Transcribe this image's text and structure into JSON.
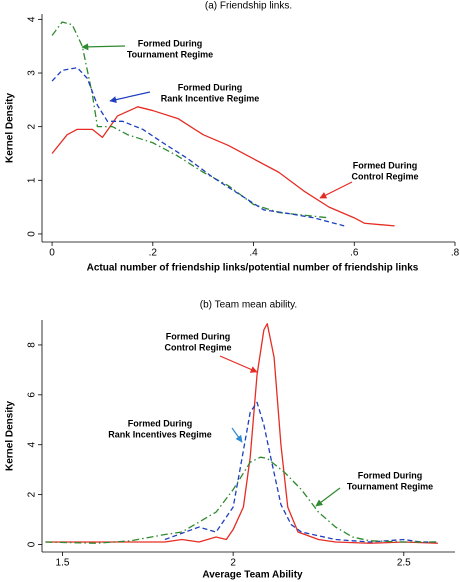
{
  "chart_data": [
    {
      "type": "line",
      "title": "(a) Friendship links.",
      "x_label": "Actual number of friendship links/potential number of friendship links",
      "y_label": "Kernel Density",
      "xlim": [
        -0.02,
        0.8
      ],
      "ylim": [
        -0.15,
        4.1
      ],
      "xticks": [
        0,
        {
          "value": 0.2,
          "label": ".2"
        },
        {
          "value": 0.4,
          "label": ".4"
        },
        {
          "value": 0.6,
          "label": ".6"
        },
        {
          "value": 0.8,
          "label": ".8"
        }
      ],
      "yticks": [
        0,
        1,
        2,
        3,
        4
      ],
      "series": [
        {
          "color": "#e52d24",
          "line_style": "solid",
          "x": [
            0,
            0.03,
            0.05,
            0.08,
            0.1,
            0.13,
            0.17,
            0.2,
            0.25,
            0.3,
            0.35,
            0.4,
            0.45,
            0.5,
            0.55,
            0.6,
            0.62,
            0.68
          ],
          "values": [
            1.5,
            1.85,
            1.95,
            1.95,
            1.8,
            2.2,
            2.37,
            2.3,
            2.15,
            1.85,
            1.65,
            1.4,
            1.15,
            0.8,
            0.5,
            0.3,
            0.2,
            0.15
          ]
        },
        {
          "color": "#2f8a2f",
          "line_style": "dashdot",
          "x": [
            0,
            0.02,
            0.04,
            0.06,
            0.08,
            0.09,
            0.12,
            0.15,
            0.2,
            0.25,
            0.3,
            0.35,
            0.4,
            0.45,
            0.5,
            0.55
          ],
          "values": [
            3.7,
            3.95,
            3.9,
            3.5,
            2.6,
            2.0,
            2.0,
            1.85,
            1.7,
            1.45,
            1.15,
            0.9,
            0.55,
            0.4,
            0.35,
            0.3
          ]
        },
        {
          "color": "#1f3fbf",
          "line_style": "dash",
          "x": [
            0,
            0.02,
            0.05,
            0.07,
            0.09,
            0.11,
            0.14,
            0.18,
            0.22,
            0.27,
            0.32,
            0.37,
            0.42,
            0.47,
            0.52,
            0.58
          ],
          "values": [
            2.85,
            3.05,
            3.1,
            2.9,
            2.4,
            2.1,
            2.1,
            1.95,
            1.7,
            1.4,
            1.05,
            0.75,
            0.45,
            0.38,
            0.3,
            0.15
          ]
        }
      ],
      "annotations": [
        {
          "text": [
            "Formed During",
            "Tournament Regime"
          ],
          "color": "#2f8a2f"
        },
        {
          "text": [
            "Formed During",
            "Rank Incentive Regime"
          ],
          "color": "#1f3fbf"
        },
        {
          "text": [
            "Formed During",
            "Control Regime"
          ],
          "color": "#e52d24"
        }
      ]
    },
    {
      "type": "line",
      "title": "(b) Team mean ability.",
      "x_label": "Average Team Ability",
      "y_label": "Kernel Density",
      "xlim": [
        1.44,
        2.65
      ],
      "ylim": [
        -0.3,
        9.0
      ],
      "xticks": [
        1.5,
        2,
        2.5
      ],
      "yticks": [
        0,
        2,
        4,
        6,
        8
      ],
      "series": [
        {
          "color": "#e52d24",
          "line_style": "solid",
          "x": [
            1.45,
            1.6,
            1.7,
            1.8,
            1.85,
            1.9,
            1.95,
            1.98,
            2.0,
            2.03,
            2.05,
            2.07,
            2.09,
            2.1,
            2.12,
            2.14,
            2.16,
            2.19,
            2.25,
            2.3,
            2.4,
            2.5,
            2.6
          ],
          "values": [
            0.1,
            0.1,
            0.1,
            0.1,
            0.2,
            0.1,
            0.3,
            0.2,
            0.6,
            1.5,
            3.5,
            6.8,
            8.6,
            8.85,
            7.5,
            4,
            1.5,
            0.5,
            0.2,
            0.1,
            0.05,
            0.1,
            0.05
          ]
        },
        {
          "color": "#1f3fbf",
          "line_style": "dash",
          "x": [
            1.8,
            1.9,
            1.95,
            2.0,
            2.02,
            2.05,
            2.07,
            2.09,
            2.11,
            2.14,
            2.17,
            2.2,
            2.3,
            2.4,
            2.5,
            2.55,
            2.6
          ],
          "values": [
            0.2,
            0.7,
            0.5,
            1.5,
            3.0,
            5.3,
            5.7,
            4.8,
            3.5,
            1.6,
            0.8,
            0.5,
            0.2,
            0.1,
            0.2,
            0.1,
            0.1
          ]
        },
        {
          "color": "#2f8a2f",
          "line_style": "dashdot",
          "x": [
            1.45,
            1.6,
            1.7,
            1.8,
            1.85,
            1.9,
            1.95,
            2.0,
            2.05,
            2.08,
            2.1,
            2.15,
            2.2,
            2.25,
            2.3,
            2.35,
            2.4,
            2.5,
            2.6
          ],
          "values": [
            0.1,
            0.05,
            0.15,
            0.4,
            0.5,
            0.9,
            1.3,
            2.2,
            3.3,
            3.5,
            3.45,
            2.9,
            2.2,
            1.3,
            0.7,
            0.3,
            0.15,
            0.1,
            0.1
          ]
        }
      ],
      "annotations": [
        {
          "text": [
            "Formed During",
            "Control Regime"
          ],
          "color": "#e52d24"
        },
        {
          "text": [
            "Formed During",
            "Rank Incentives Regime"
          ],
          "color": "#2a8ad4"
        },
        {
          "text": [
            "Formed During",
            "Tournament Regime"
          ],
          "color": "#2f8a2f"
        }
      ]
    }
  ]
}
